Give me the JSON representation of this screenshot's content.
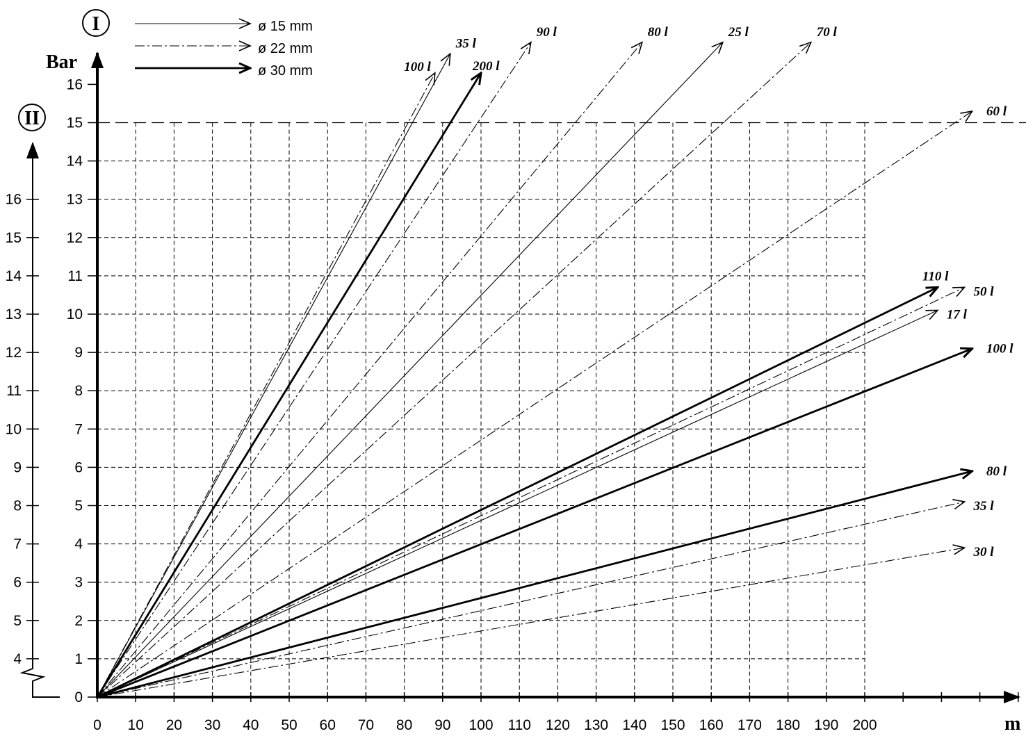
{
  "chart_data": {
    "type": "line",
    "xlabel": "m",
    "ylabel": "Bar",
    "xlim": [
      0,
      240
    ],
    "ylim": [
      0,
      16
    ],
    "x_ticks": [
      0,
      10,
      20,
      30,
      40,
      50,
      60,
      70,
      80,
      90,
      100,
      110,
      120,
      130,
      140,
      150,
      160,
      170,
      180,
      190,
      200
    ],
    "y_ticks": [
      0,
      1,
      2,
      3,
      4,
      5,
      6,
      7,
      8,
      9,
      10,
      11,
      12,
      13,
      14,
      15,
      16
    ],
    "grid": true,
    "reference_line_y": 15,
    "scale_I_label": "I",
    "scale_II_label": "II",
    "scale_II_ticks": [
      4,
      5,
      6,
      7,
      8,
      9,
      10,
      11,
      12,
      13,
      14,
      15,
      16
    ],
    "scale_II_offset": 3,
    "legend": [
      {
        "label": "ø 15 mm",
        "style": "thin"
      },
      {
        "label": "ø 22 mm",
        "style": "dashdot"
      },
      {
        "label": "ø 30 mm",
        "style": "thick"
      }
    ],
    "series": [
      {
        "name": "100 l",
        "style": "dashdot",
        "label_side": "start",
        "points": [
          [
            0,
            0
          ],
          [
            88,
            16.3
          ]
        ]
      },
      {
        "name": "35 l",
        "style": "thin",
        "label_side": "end",
        "points": [
          [
            0,
            0
          ],
          [
            92,
            16.8
          ]
        ]
      },
      {
        "name": "200 l",
        "style": "thick",
        "label_side": "end",
        "points": [
          [
            0,
            0
          ],
          [
            100,
            16.3
          ]
        ]
      },
      {
        "name": "90 l",
        "style": "dashdot",
        "label_side": "end",
        "points": [
          [
            0,
            0
          ],
          [
            113,
            17.1
          ]
        ]
      },
      {
        "name": "80 l",
        "style": "dashdot",
        "label_side": "end",
        "points": [
          [
            0,
            0
          ],
          [
            142,
            17.1
          ]
        ]
      },
      {
        "name": "25 l",
        "style": "thin",
        "label_side": "end",
        "points": [
          [
            0,
            0
          ],
          [
            163,
            17.1
          ]
        ]
      },
      {
        "name": "70 l",
        "style": "dashdot",
        "label_side": "end",
        "points": [
          [
            0,
            0
          ],
          [
            186,
            17.1
          ]
        ]
      },
      {
        "name": "60 l",
        "style": "dashdot",
        "label_side": "end",
        "points": [
          [
            0,
            0
          ],
          [
            228,
            15.3
          ]
        ]
      },
      {
        "name": "110 l",
        "style": "thick",
        "label_side": "end",
        "points": [
          [
            0,
            0
          ],
          [
            219,
            10.7
          ]
        ]
      },
      {
        "name": "50 l",
        "style": "dashdot",
        "label_side": "end",
        "points": [
          [
            0,
            0
          ],
          [
            226,
            10.7
          ]
        ]
      },
      {
        "name": "17 l",
        "style": "thin",
        "label_side": "end",
        "points": [
          [
            0,
            0
          ],
          [
            219,
            10.1
          ]
        ]
      },
      {
        "name": "100 l",
        "style": "thick",
        "label_side": "end",
        "points": [
          [
            0,
            0
          ],
          [
            228,
            9.1
          ]
        ]
      },
      {
        "name": "80 l",
        "style": "thick",
        "label_side": "end",
        "points": [
          [
            0,
            0
          ],
          [
            228,
            5.9
          ]
        ]
      },
      {
        "name": "35 l",
        "style": "dashdot",
        "label_side": "end",
        "points": [
          [
            0,
            0
          ],
          [
            226,
            5.1
          ]
        ]
      },
      {
        "name": "30 l",
        "style": "dashdot",
        "label_side": "end",
        "points": [
          [
            0,
            0
          ],
          [
            226,
            3.9
          ]
        ]
      }
    ]
  }
}
